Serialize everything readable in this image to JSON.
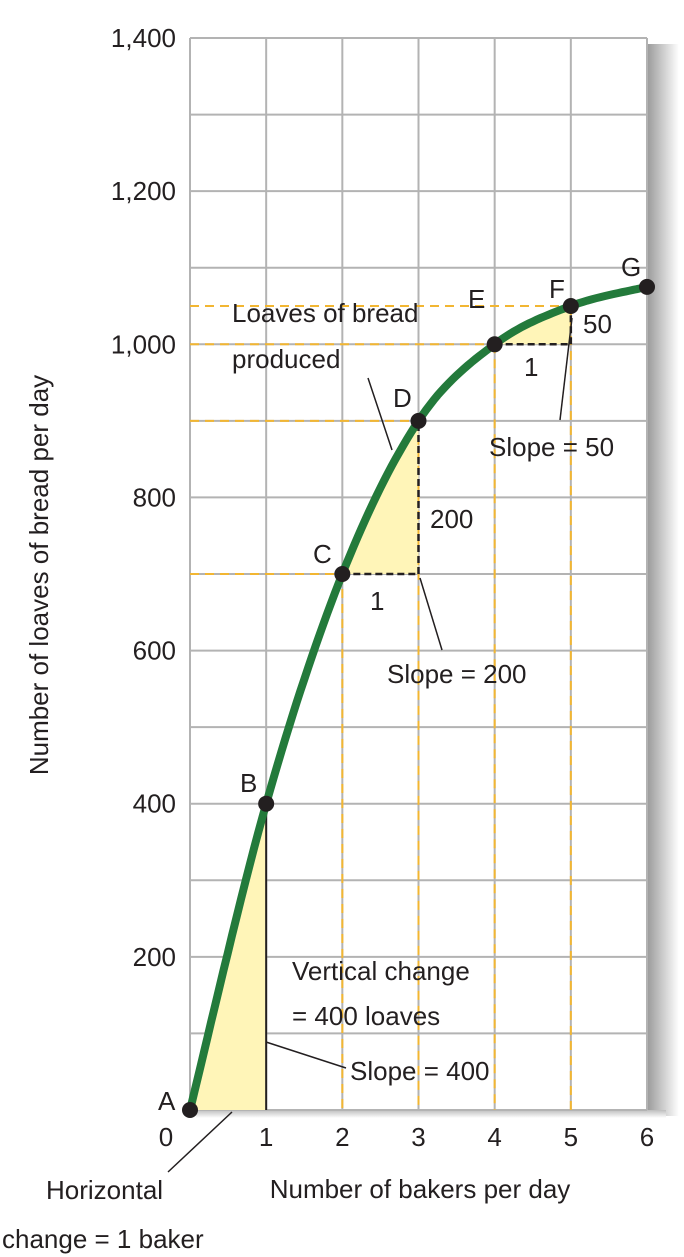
{
  "chart_data": {
    "type": "line",
    "title": "",
    "xlabel": "Number of bakers per day",
    "ylabel": "Number of loaves of bread per day",
    "xlim": [
      0,
      6
    ],
    "ylim": [
      0,
      1400
    ],
    "grid": true,
    "x_ticks": [
      "0",
      "1",
      "2",
      "3",
      "4",
      "5",
      "6"
    ],
    "y_ticks": [
      "200",
      "400",
      "600",
      "800",
      "1,000",
      "1,200",
      "1,400"
    ],
    "series": [
      {
        "name": "Loaves of bread produced",
        "color": "#237a3b",
        "points": [
          {
            "label": "A",
            "x": 0,
            "y": 0
          },
          {
            "label": "B",
            "x": 1,
            "y": 400
          },
          {
            "label": "C",
            "x": 2,
            "y": 700
          },
          {
            "label": "D",
            "x": 3,
            "y": 900
          },
          {
            "label": "E",
            "x": 4,
            "y": 1000
          },
          {
            "label": "F",
            "x": 5,
            "y": 1050
          },
          {
            "label": "G",
            "x": 6,
            "y": 1075
          }
        ]
      }
    ],
    "annotations": {
      "curve_label_1": "Loaves of bread",
      "curve_label_2": "produced",
      "cd_rise": "200",
      "cd_run": "1",
      "cd_slope": "Slope = 200",
      "ef_rise": "50",
      "ef_run": "1",
      "ef_slope": "Slope = 50",
      "ab_vertical_1": "Vertical change",
      "ab_vertical_2": "= 400 loaves",
      "ab_slope": "Slope = 400",
      "ab_horizontal_1": "Horizontal",
      "ab_horizontal_2": "change = 1 baker"
    },
    "colors": {
      "curve": "#237a3b",
      "fill": "#fff5b8",
      "dash": "#f2b632",
      "grid": "#b3b3b3"
    }
  }
}
